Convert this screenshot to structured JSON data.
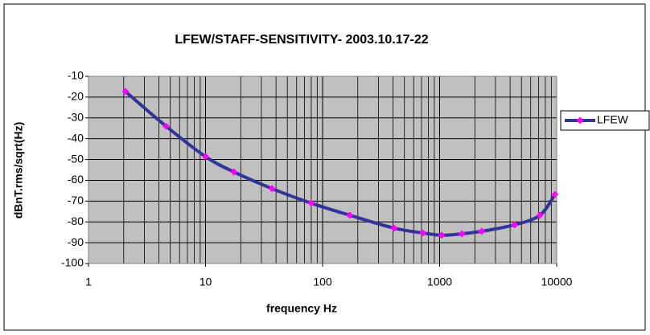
{
  "chart_data": {
    "type": "line",
    "title": "LFEW/STAFF-SENSITIVITY- 2003.10.17-22",
    "x_label": "frequency Hz",
    "y_label": "dBnT.rms/sqrt(Hz)",
    "x": [
      2.07,
      4.6,
      10,
      17.5,
      37,
      80,
      171,
      409,
      720,
      1040,
      1550,
      2290,
      4370,
      7180,
      9680
    ],
    "series": [
      {
        "name": "LFEW",
        "color": "#333399",
        "marker_color": "#ff00ff",
        "values": [
          -17.3,
          -34,
          -48.6,
          -56,
          -64,
          -71,
          -76.8,
          -83,
          -85.3,
          -86.4,
          -85.7,
          -84.5,
          -81.4,
          -76.8,
          -66.8
        ]
      }
    ],
    "xlim": [
      1,
      10000
    ],
    "xticks": [
      1,
      10,
      100,
      1000,
      10000
    ],
    "xlog": true,
    "ylim": [
      -100,
      -10
    ],
    "yticks": [
      -100,
      -90,
      -80,
      -70,
      -60,
      -50,
      -40,
      -30,
      -20,
      -10
    ],
    "grid": true,
    "legend": "right"
  }
}
